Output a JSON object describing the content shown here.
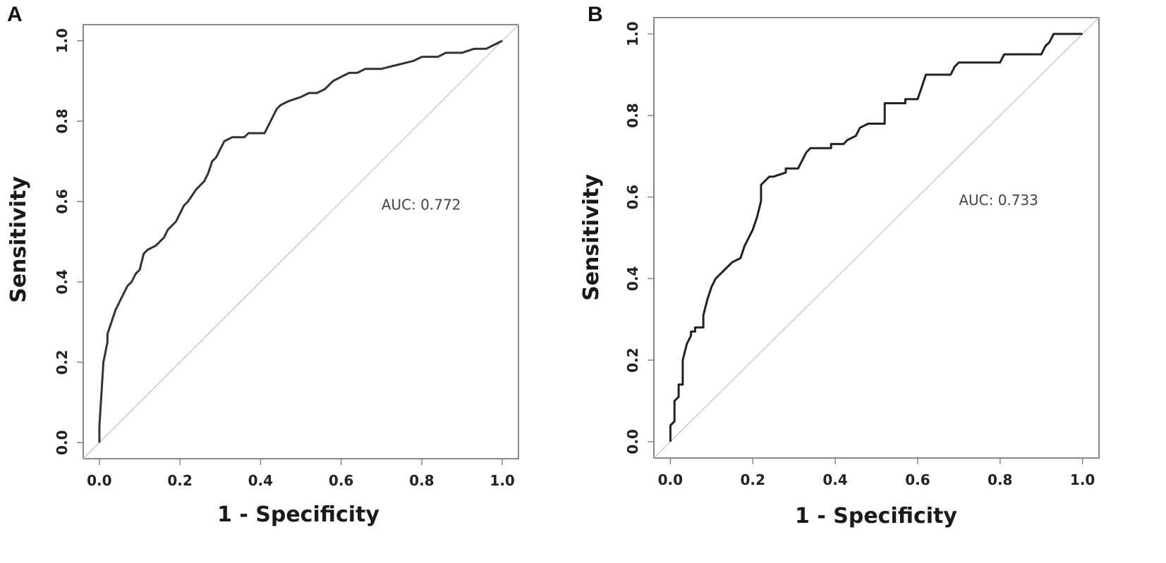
{
  "figure": {
    "title": ""
  },
  "chart_data": [
    {
      "type": "line",
      "panel_label": "A",
      "title": "",
      "xlabel": "1 - Specificity",
      "ylabel": "Sensitivity",
      "xlim": [
        -0.04,
        1.04
      ],
      "ylim": [
        -0.04,
        1.04
      ],
      "x_ticks": [
        "0.0",
        "0.2",
        "0.4",
        "0.6",
        "0.8",
        "1.0"
      ],
      "y_ticks": [
        "0.0",
        "0.2",
        "0.4",
        "0.6",
        "0.8",
        "1.0"
      ],
      "grid": false,
      "annotation": "AUC: 0.772",
      "annotation_pos": [
        0.7,
        0.58
      ],
      "colors": {
        "curve": "#333333",
        "diagonal": "#cccccc",
        "frame": "#888888"
      },
      "series": [
        {
          "name": "ROC curve",
          "x": [
            0.0,
            0.0,
            0.01,
            0.02,
            0.02,
            0.03,
            0.04,
            0.05,
            0.06,
            0.07,
            0.08,
            0.09,
            0.1,
            0.11,
            0.12,
            0.14,
            0.16,
            0.17,
            0.19,
            0.2,
            0.21,
            0.22,
            0.24,
            0.26,
            0.27,
            0.28,
            0.29,
            0.3,
            0.31,
            0.33,
            0.34,
            0.36,
            0.37,
            0.41,
            0.42,
            0.44,
            0.45,
            0.47,
            0.5,
            0.52,
            0.54,
            0.56,
            0.57,
            0.58,
            0.6,
            0.62,
            0.64,
            0.66,
            0.7,
            0.74,
            0.78,
            0.8,
            0.84,
            0.86,
            0.9,
            0.93,
            0.96,
            0.98,
            1.0
          ],
          "y": [
            0.0,
            0.04,
            0.2,
            0.25,
            0.27,
            0.3,
            0.33,
            0.35,
            0.37,
            0.39,
            0.4,
            0.42,
            0.43,
            0.47,
            0.48,
            0.49,
            0.51,
            0.53,
            0.55,
            0.57,
            0.59,
            0.6,
            0.63,
            0.65,
            0.67,
            0.7,
            0.71,
            0.73,
            0.75,
            0.76,
            0.76,
            0.76,
            0.77,
            0.77,
            0.79,
            0.83,
            0.84,
            0.85,
            0.86,
            0.87,
            0.87,
            0.88,
            0.89,
            0.9,
            0.91,
            0.92,
            0.92,
            0.93,
            0.93,
            0.94,
            0.95,
            0.96,
            0.96,
            0.97,
            0.97,
            0.98,
            0.98,
            0.99,
            1.0
          ]
        }
      ]
    },
    {
      "type": "line",
      "panel_label": "B",
      "title": "",
      "xlabel": "1 - Specificity",
      "ylabel": "Sensitivity",
      "xlim": [
        -0.04,
        1.04
      ],
      "ylim": [
        -0.04,
        1.04
      ],
      "x_ticks": [
        "0.0",
        "0.2",
        "0.4",
        "0.6",
        "0.8",
        "1.0"
      ],
      "y_ticks": [
        "0.0",
        "0.2",
        "0.4",
        "0.6",
        "0.8",
        "1.0"
      ],
      "grid": false,
      "annotation": "AUC: 0.733",
      "annotation_pos": [
        0.7,
        0.58
      ],
      "colors": {
        "curve": "#222222",
        "diagonal": "#cccccc",
        "frame": "#888888"
      },
      "series": [
        {
          "name": "ROC curve",
          "x": [
            0.0,
            0.0,
            0.01,
            0.01,
            0.02,
            0.02,
            0.03,
            0.03,
            0.04,
            0.05,
            0.05,
            0.06,
            0.06,
            0.08,
            0.08,
            0.09,
            0.1,
            0.11,
            0.12,
            0.13,
            0.15,
            0.17,
            0.18,
            0.19,
            0.2,
            0.21,
            0.22,
            0.22,
            0.23,
            0.24,
            0.25,
            0.28,
            0.28,
            0.31,
            0.32,
            0.33,
            0.34,
            0.39,
            0.39,
            0.42,
            0.43,
            0.45,
            0.46,
            0.48,
            0.52,
            0.52,
            0.57,
            0.57,
            0.6,
            0.61,
            0.62,
            0.68,
            0.69,
            0.7,
            0.72,
            0.8,
            0.81,
            0.9,
            0.91,
            0.92,
            0.93,
            0.97,
            1.0
          ],
          "y": [
            0.0,
            0.04,
            0.05,
            0.1,
            0.11,
            0.14,
            0.14,
            0.2,
            0.24,
            0.26,
            0.27,
            0.27,
            0.28,
            0.28,
            0.31,
            0.35,
            0.38,
            0.4,
            0.41,
            0.42,
            0.44,
            0.45,
            0.48,
            0.5,
            0.52,
            0.55,
            0.59,
            0.63,
            0.64,
            0.65,
            0.65,
            0.66,
            0.67,
            0.67,
            0.69,
            0.71,
            0.72,
            0.72,
            0.73,
            0.73,
            0.74,
            0.75,
            0.77,
            0.78,
            0.78,
            0.83,
            0.83,
            0.84,
            0.84,
            0.87,
            0.9,
            0.9,
            0.92,
            0.93,
            0.93,
            0.93,
            0.95,
            0.95,
            0.97,
            0.98,
            1.0,
            1.0,
            1.0
          ]
        }
      ]
    }
  ]
}
